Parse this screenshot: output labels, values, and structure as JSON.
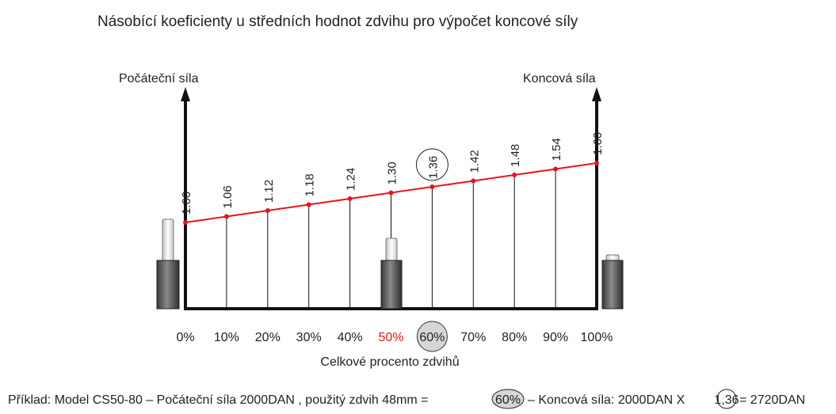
{
  "title": "Násobící koeficienty u středních hodnot zdvihu pro výpočet koncové síly",
  "left_axis_label": "Počáteční síla",
  "right_axis_label": "Koncová síla",
  "x_axis_label": "Celkové procento zdvihů",
  "chart_data": {
    "type": "line",
    "x": [
      "0%",
      "10%",
      "20%",
      "30%",
      "40%",
      "50%",
      "60%",
      "70%",
      "80%",
      "90%",
      "100%"
    ],
    "x_values": [
      0,
      10,
      20,
      30,
      40,
      50,
      60,
      70,
      80,
      90,
      100
    ],
    "values": [
      "1.00",
      "1.06",
      "1.12",
      "1.18",
      "1.24",
      "1.30",
      "1.36",
      "1.42",
      "1.48",
      "1.54",
      "1.60"
    ],
    "y_numeric": [
      1.0,
      1.06,
      1.12,
      1.18,
      1.24,
      1.3,
      1.36,
      1.42,
      1.48,
      1.54,
      1.6
    ],
    "highlight_x": "60%",
    "red_x": "50%",
    "line_color": "#e8141b"
  },
  "example": {
    "prefix": "Příklad: Model CS50-80 – Počáteční síla 2000DAN , použitý zdvih 48mm =",
    "stroke_pct": "60%",
    "middle": "– Koncová síla: 2000DAN  X",
    "coef": "1,36",
    "suffix": "= 2720DAN"
  }
}
